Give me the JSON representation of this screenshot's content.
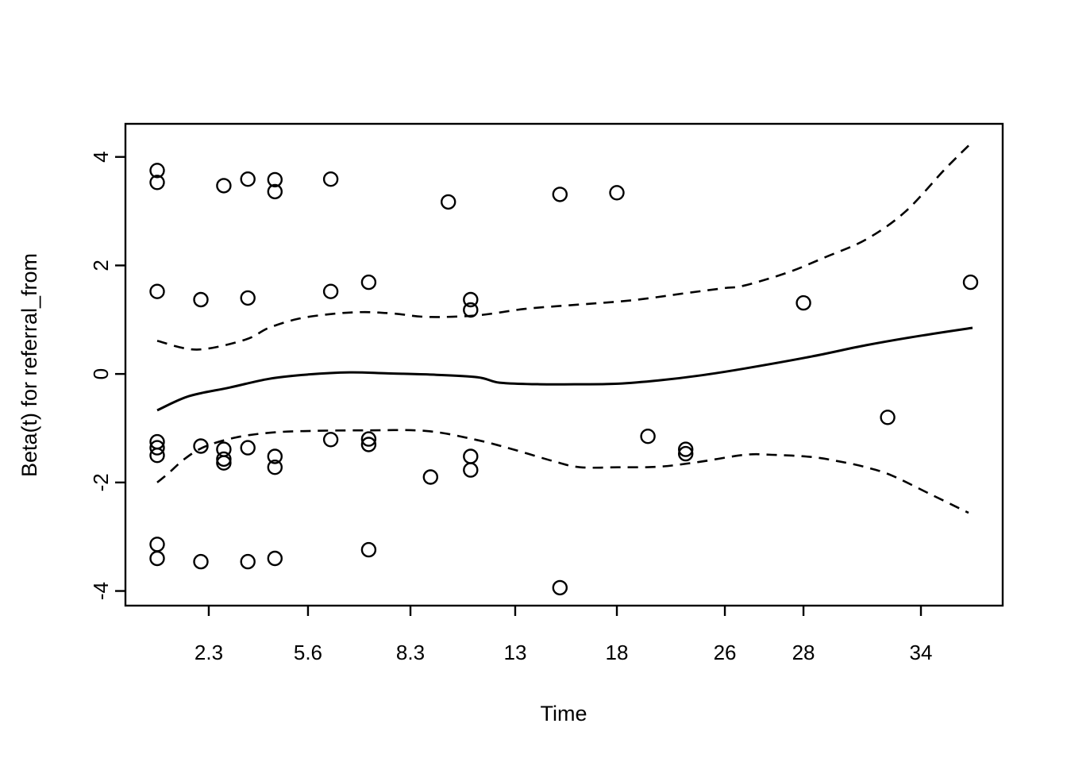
{
  "chart_data": {
    "type": "scatter",
    "title": "",
    "xlabel": "Time",
    "ylabel": "Beta(t) for referral_from",
    "x_scale": "km-transformed-nonlinear",
    "ylim": [
      -4.27,
      4.61
    ],
    "y_ticks": [
      -4,
      -2,
      0,
      2,
      4
    ],
    "x_ticks": [
      {
        "label": "2.3",
        "time": 2.3
      },
      {
        "label": "5.6",
        "time": 5.6
      },
      {
        "label": "8.3",
        "time": 8.3
      },
      {
        "label": "13",
        "time": 13
      },
      {
        "label": "18",
        "time": 18
      },
      {
        "label": "26",
        "time": 26
      },
      {
        "label": "28",
        "time": 28
      },
      {
        "label": "34",
        "time": 34
      }
    ],
    "x_axis_anchors": [
      [
        1.0,
        0.0362
      ],
      [
        2.3,
        0.095
      ],
      [
        5.6,
        0.2081
      ],
      [
        8.3,
        0.3249
      ],
      [
        13,
        0.4443
      ],
      [
        18,
        0.5602
      ],
      [
        26,
        0.6833
      ],
      [
        28,
        0.7729
      ],
      [
        34,
        0.9068
      ],
      [
        36.6,
        0.9656
      ]
    ],
    "points": [
      [
        1,
        3.75
      ],
      [
        1,
        3.53
      ],
      [
        1,
        1.52
      ],
      [
        1,
        -1.25
      ],
      [
        1,
        -1.36
      ],
      [
        1,
        -1.5
      ],
      [
        1,
        -3.14
      ],
      [
        1,
        -3.4
      ],
      [
        2.1,
        1.37
      ],
      [
        2.1,
        -1.33
      ],
      [
        2.1,
        -3.46
      ],
      [
        2.8,
        3.47
      ],
      [
        2.8,
        -1.39
      ],
      [
        2.8,
        -1.57
      ],
      [
        2.8,
        -1.64
      ],
      [
        3.6,
        3.59
      ],
      [
        3.6,
        1.4
      ],
      [
        3.6,
        -1.36
      ],
      [
        3.6,
        -3.46
      ],
      [
        4.5,
        3.58
      ],
      [
        4.5,
        3.36
      ],
      [
        4.5,
        -1.52
      ],
      [
        4.5,
        -1.72
      ],
      [
        4.5,
        -3.4
      ],
      [
        6.2,
        3.59
      ],
      [
        6.2,
        1.52
      ],
      [
        6.2,
        -1.21
      ],
      [
        7.2,
        1.69
      ],
      [
        7.2,
        -1.2
      ],
      [
        7.2,
        -1.3
      ],
      [
        7.2,
        -3.24
      ],
      [
        9.2,
        -1.9
      ],
      [
        10,
        3.17
      ],
      [
        11,
        1.37
      ],
      [
        11,
        1.18
      ],
      [
        11,
        -1.52
      ],
      [
        11,
        -1.77
      ],
      [
        15.2,
        3.31
      ],
      [
        15.2,
        -3.94
      ],
      [
        18,
        3.34
      ],
      [
        20.3,
        -1.15
      ],
      [
        23.1,
        -1.39
      ],
      [
        23.1,
        -1.47
      ],
      [
        28,
        1.31
      ],
      [
        32.3,
        -0.8
      ],
      [
        36.5,
        1.69
      ]
    ],
    "fit_line": [
      [
        1,
        -0.67
      ],
      [
        1.8,
        -0.41
      ],
      [
        3.0,
        -0.25
      ],
      [
        4.3,
        -0.09
      ],
      [
        5.6,
        -0.01
      ],
      [
        6.7,
        0.03
      ],
      [
        7.7,
        0.01
      ],
      [
        9.1,
        -0.01
      ],
      [
        11.3,
        -0.06
      ],
      [
        12.3,
        -0.16
      ],
      [
        14.2,
        -0.19
      ],
      [
        16.2,
        -0.19
      ],
      [
        18.1,
        -0.18
      ],
      [
        21.1,
        -0.12
      ],
      [
        24.1,
        -0.03
      ],
      [
        26.5,
        0.1
      ],
      [
        28.4,
        0.32
      ],
      [
        31.2,
        0.53
      ],
      [
        33.9,
        0.7
      ],
      [
        36.6,
        0.85
      ]
    ],
    "upper_ci": [
      [
        1,
        0.61
      ],
      [
        2.0,
        0.45
      ],
      [
        3.5,
        0.63
      ],
      [
        4.3,
        0.85
      ],
      [
        5.3,
        1.02
      ],
      [
        6.3,
        1.11
      ],
      [
        7.1,
        1.14
      ],
      [
        7.9,
        1.11
      ],
      [
        9.1,
        1.05
      ],
      [
        11.3,
        1.08
      ],
      [
        13.5,
        1.2
      ],
      [
        16.2,
        1.28
      ],
      [
        19.2,
        1.36
      ],
      [
        23.1,
        1.49
      ],
      [
        25.9,
        1.58
      ],
      [
        26.5,
        1.63
      ],
      [
        27.6,
        1.87
      ],
      [
        29.1,
        2.15
      ],
      [
        31.2,
        2.48
      ],
      [
        33.2,
        2.99
      ],
      [
        35.2,
        3.77
      ],
      [
        36.6,
        4.28
      ]
    ],
    "lower_ci": [
      [
        1,
        -2.0
      ],
      [
        1.3,
        -1.82
      ],
      [
        1.7,
        -1.56
      ],
      [
        2.2,
        -1.34
      ],
      [
        3.2,
        -1.17
      ],
      [
        4.4,
        -1.08
      ],
      [
        5.7,
        -1.05
      ],
      [
        7.1,
        -1.04
      ],
      [
        9.0,
        -1.05
      ],
      [
        11.2,
        -1.21
      ],
      [
        12.9,
        -1.39
      ],
      [
        14.9,
        -1.61
      ],
      [
        16.2,
        -1.72
      ],
      [
        18.1,
        -1.72
      ],
      [
        21.1,
        -1.71
      ],
      [
        24.1,
        -1.62
      ],
      [
        26.5,
        -1.49
      ],
      [
        27.2,
        -1.49
      ],
      [
        28.4,
        -1.53
      ],
      [
        29.8,
        -1.61
      ],
      [
        31.2,
        -1.72
      ],
      [
        32.5,
        -1.87
      ],
      [
        34.5,
        -2.22
      ],
      [
        36.4,
        -2.56
      ]
    ],
    "style": {
      "color": "#000000",
      "background": "#ffffff",
      "point_radius": 8.5,
      "point_stroke": 2.4,
      "line_width_fit": 3,
      "line_width_ci": 2.6,
      "dash": [
        13,
        9
      ],
      "box_stroke": 2.4,
      "tick_length": 13
    }
  }
}
